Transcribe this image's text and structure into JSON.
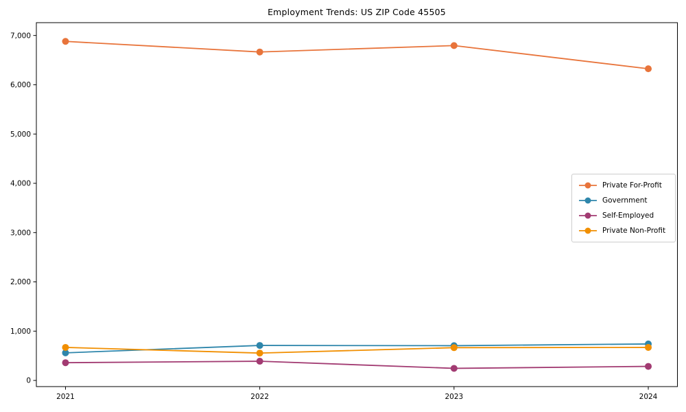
{
  "window": {
    "background_color": "#ffffff",
    "text_color": "#000000"
  },
  "chart_data": {
    "type": "line",
    "title": "Employment Trends: US ZIP Code 45505",
    "categories": [
      "2021",
      "2022",
      "2023",
      "2024"
    ],
    "series": [
      {
        "name": "Private For-Profit",
        "color": "#E8743B",
        "values": [
          6880,
          6665,
          6795,
          6325
        ]
      },
      {
        "name": "Government",
        "color": "#2E86AB",
        "values": [
          560,
          710,
          705,
          740
        ]
      },
      {
        "name": "Self-Employed",
        "color": "#A23B72",
        "values": [
          360,
          390,
          245,
          285
        ]
      },
      {
        "name": "Private Non-Profit",
        "color": "#F18F01",
        "values": [
          670,
          555,
          665,
          670
        ]
      }
    ],
    "xlabel": "",
    "ylabel": "",
    "ylim": [
      -125,
      7260
    ],
    "yticks": [
      0,
      1000,
      2000,
      3000,
      4000,
      5000,
      6000,
      7000
    ],
    "ytick_labels": [
      "0",
      "1,000",
      "2,000",
      "3,000",
      "4,000",
      "5,000",
      "6,000",
      "7,000"
    ],
    "grid": false,
    "legend_position": "center-right",
    "marker": "circle",
    "frame": true,
    "axis_color": "#000000"
  }
}
